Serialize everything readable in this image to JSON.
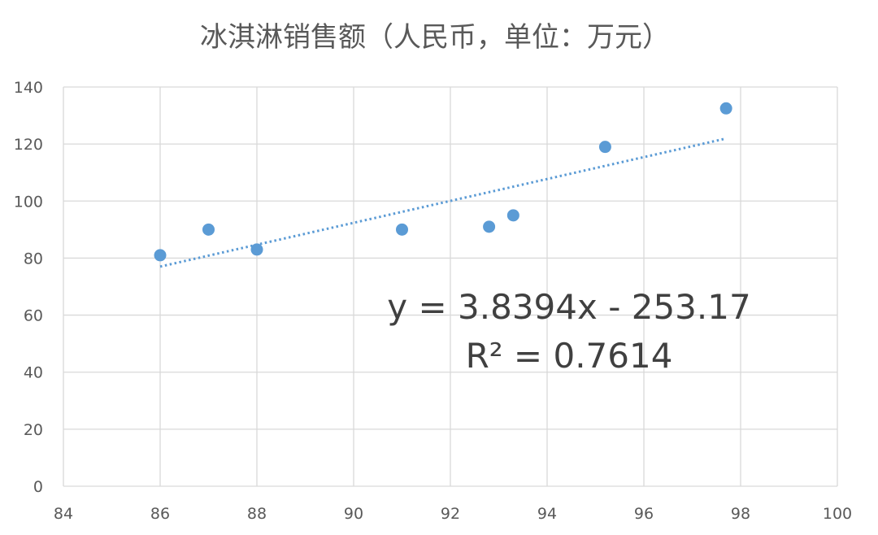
{
  "chart_data": {
    "type": "scatter",
    "title": "冰淇淋销售额（人民币，单位：万元）",
    "xlabel": "",
    "ylabel": "",
    "xlim": [
      84,
      100
    ],
    "ylim": [
      0,
      140
    ],
    "xticks": [
      84,
      86,
      88,
      90,
      92,
      94,
      96,
      98,
      100
    ],
    "yticks": [
      0,
      20,
      40,
      60,
      80,
      100,
      120,
      140
    ],
    "grid": true,
    "legend": "none",
    "series": [
      {
        "x": [
          86,
          87,
          88,
          91,
          92.8,
          93.3,
          95.2,
          97.7
        ],
        "y": [
          81,
          90,
          83,
          90,
          91,
          95,
          119,
          132.5
        ],
        "color": "#5B9BD5"
      }
    ],
    "trendline": {
      "type": "linear",
      "slope": 3.8394,
      "intercept": -253.17,
      "x_range": [
        86,
        97.7
      ],
      "style": "dotted",
      "color": "#5B9BD5"
    },
    "annotations": [
      "y = 3.8394x - 253.17",
      "R² = 0.7614"
    ]
  }
}
